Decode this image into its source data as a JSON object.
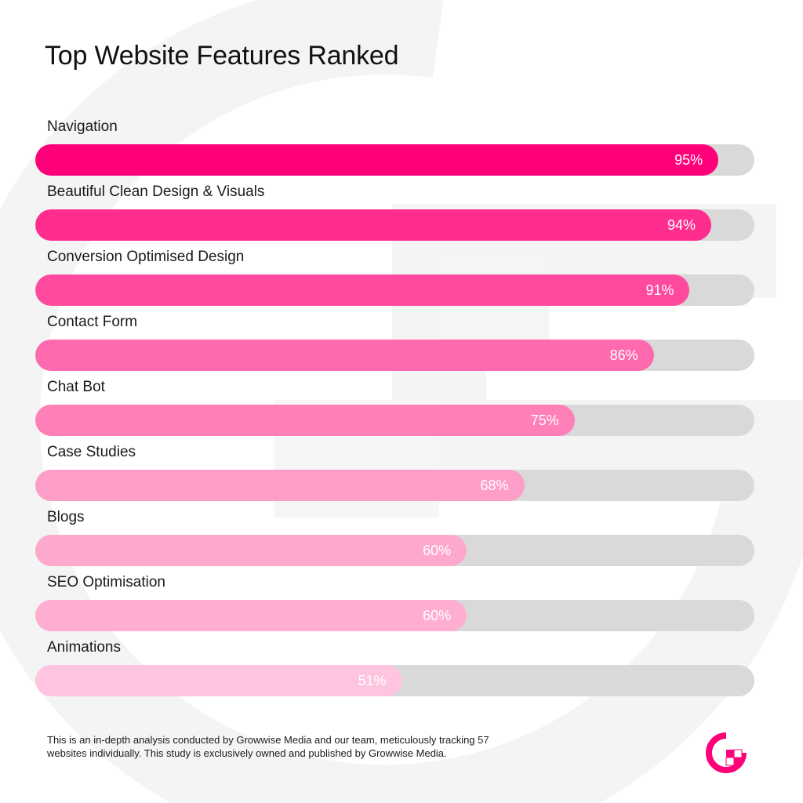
{
  "title": "Top Website Features Ranked",
  "chart_data": {
    "type": "bar",
    "orientation": "horizontal",
    "title": "Top Website Features Ranked",
    "xlim": [
      0,
      100
    ],
    "unit": "%",
    "categories": [
      "Navigation",
      "Beautiful Clean Design & Visuals",
      "Conversion Optimised Design",
      "Contact Form",
      "Chat Bot",
      "Case Studies",
      "Blogs",
      "SEO Optimisation",
      "Animations"
    ],
    "values": [
      95,
      94,
      91,
      86,
      75,
      68,
      60,
      60,
      51
    ],
    "value_labels": [
      "95%",
      "94%",
      "91%",
      "86%",
      "75%",
      "68%",
      "60%",
      "60%",
      "51%"
    ],
    "bar_colors": [
      "#ff007a",
      "#ff2e8e",
      "#ff4a9d",
      "#ff6aae",
      "#ff80b9",
      "#ff9dc9",
      "#ffa8ce",
      "#ffaed2",
      "#ffc4df"
    ],
    "track_color": "#d9d9d9"
  },
  "footnote": "This is an in-depth analysis conducted by Growwise Media and our team, meticulously tracking 57 websites individually. This study is exclusively owned and published by Growwise Media.",
  "logo": {
    "icon": "growwise-logo-icon",
    "color": "#ff007a"
  }
}
